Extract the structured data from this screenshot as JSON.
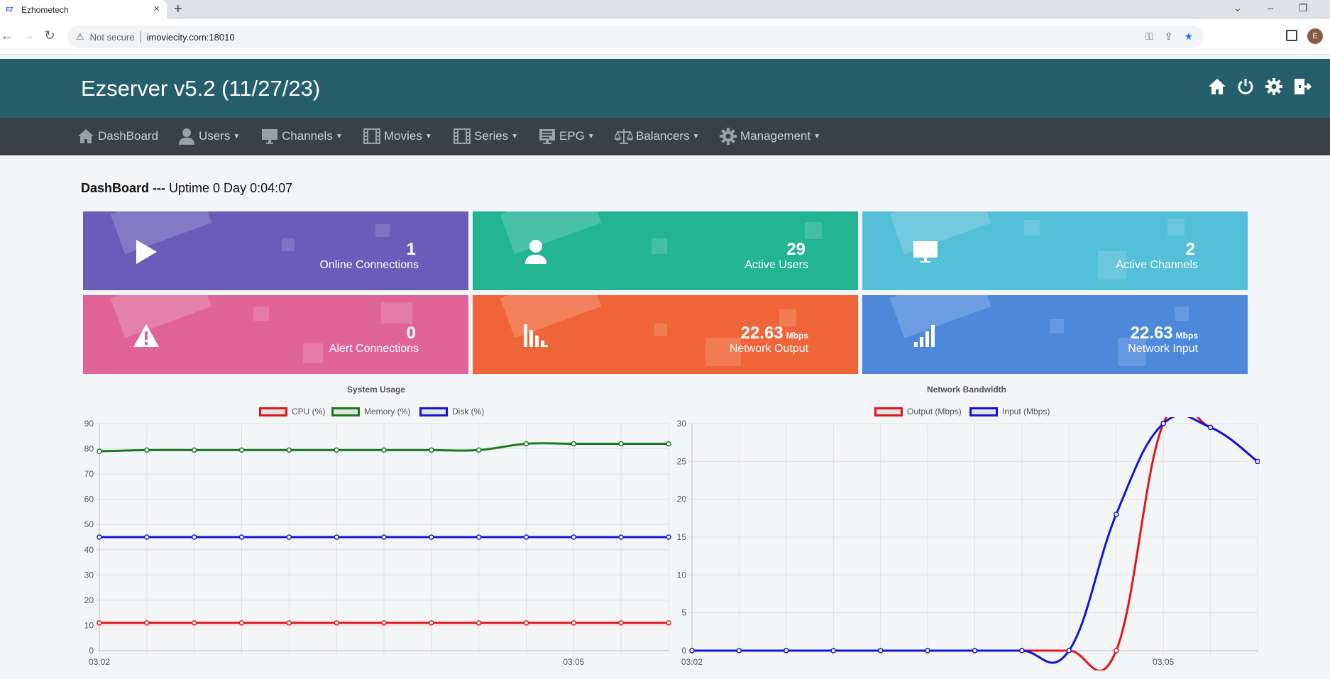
{
  "browser": {
    "tab_title": "Ezhometech",
    "tab_favicon": "EZ",
    "security_label": "Not secure",
    "url": "imoviecity.com:18010",
    "avatar_letter": "E"
  },
  "app": {
    "title": "Ezserver v5.2 (11/27/23)",
    "header_icons": [
      "home-icon",
      "power-icon",
      "gear-icon",
      "logout-icon"
    ]
  },
  "nav": [
    {
      "label": "DashBoard",
      "icon": "home-icon",
      "dropdown": false
    },
    {
      "label": "Users",
      "icon": "user-icon",
      "dropdown": true
    },
    {
      "label": "Channels",
      "icon": "monitor-icon",
      "dropdown": true
    },
    {
      "label": "Movies",
      "icon": "film-icon",
      "dropdown": true
    },
    {
      "label": "Series",
      "icon": "film-icon",
      "dropdown": true
    },
    {
      "label": "EPG",
      "icon": "epg-icon",
      "dropdown": true
    },
    {
      "label": "Balancers",
      "icon": "scale-icon",
      "dropdown": true
    },
    {
      "label": "Management",
      "icon": "gear-icon",
      "dropdown": true
    }
  ],
  "dashboard": {
    "title_bold": "DashBoard ---",
    "uptime": "Uptime 0 Day 0:04:07"
  },
  "cards": [
    {
      "value": "1",
      "unit": "",
      "label": "Online Connections",
      "icon": "play-icon",
      "color": "#6a5cb8"
    },
    {
      "value": "29",
      "unit": "",
      "label": "Active Users",
      "icon": "user-icon",
      "color": "#22b493"
    },
    {
      "value": "2",
      "unit": "",
      "label": "Active Channels",
      "icon": "monitor-icon",
      "color": "#53bfd8"
    },
    {
      "value": "0",
      "unit": "",
      "label": "Alert Connections",
      "icon": "warning-icon",
      "color": "#e06497"
    },
    {
      "value": "22.63",
      "unit": "Mbps",
      "label": "Network Output",
      "icon": "signal-down-icon",
      "color": "#ef6438"
    },
    {
      "value": "22.63",
      "unit": "Mbps",
      "label": "Network Input",
      "icon": "signal-up-icon",
      "color": "#4d88db"
    }
  ],
  "chart_data": [
    {
      "type": "line",
      "title": "System Usage",
      "x": [
        "03:02",
        "",
        "",
        "",
        "",
        "",
        "",
        "",
        "",
        "",
        "03:05",
        "",
        ""
      ],
      "x_tick_labels": [
        "03:02",
        "03:05"
      ],
      "ylim": [
        0,
        90
      ],
      "yticks": [
        0,
        10,
        20,
        30,
        40,
        50,
        60,
        70,
        80,
        90
      ],
      "legend_position": "top",
      "series": [
        {
          "name": "CPU (%)",
          "color": "#e0161b",
          "values": [
            11,
            11,
            11,
            11,
            11,
            11,
            11,
            11,
            11,
            11,
            11,
            11,
            11
          ]
        },
        {
          "name": "Memory (%)",
          "color": "#1a7a1a",
          "values": [
            79,
            79.5,
            79.5,
            79.5,
            79.5,
            79.5,
            79.5,
            79.5,
            79.5,
            82,
            82,
            82,
            82
          ]
        },
        {
          "name": "Disk (%)",
          "color": "#1414d8",
          "values": [
            45,
            45,
            45,
            45,
            45,
            45,
            45,
            45,
            45,
            45,
            45,
            45,
            45
          ]
        }
      ]
    },
    {
      "type": "line",
      "title": "Network Bandwidth",
      "x": [
        "03:02",
        "",
        "",
        "",
        "",
        "",
        "",
        "",
        "",
        "",
        "03:05",
        "",
        ""
      ],
      "x_tick_labels": [
        "03:02",
        "03:05"
      ],
      "ylim": [
        0,
        30
      ],
      "yticks": [
        0,
        5,
        10,
        15,
        20,
        25,
        30
      ],
      "legend_position": "top",
      "series": [
        {
          "name": "Output (Mbps)",
          "color": "#e0161b",
          "values": [
            0,
            0,
            0,
            0,
            0,
            0,
            0,
            0,
            0,
            0,
            30,
            29.5,
            25
          ]
        },
        {
          "name": "Input (Mbps)",
          "color": "#1414d8",
          "values": [
            0,
            0,
            0,
            0,
            0,
            0,
            0,
            0,
            0,
            18,
            30,
            29.5,
            25
          ]
        }
      ]
    }
  ]
}
